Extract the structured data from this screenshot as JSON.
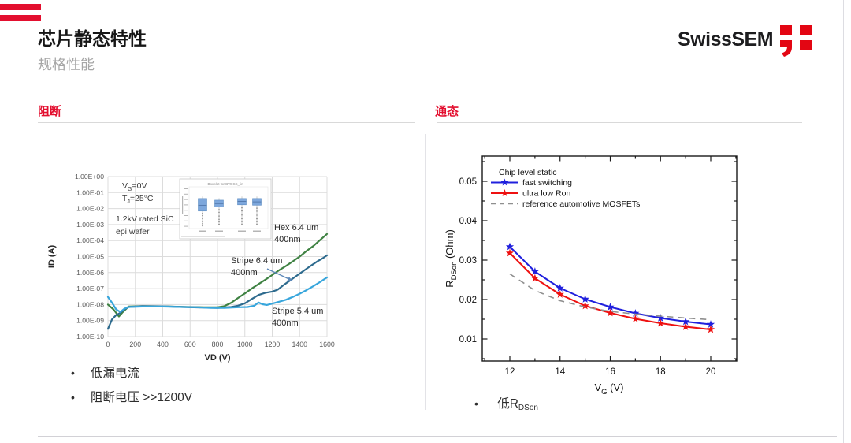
{
  "slide": {
    "title": "芯片静态特性",
    "subtitle": "规格性能",
    "accent_color": "#e30f2f"
  },
  "logo": {
    "text": "SwissSEM",
    "mark_color": "#e30613"
  },
  "left_section": {
    "heading": "阻断",
    "bullets": [
      "低漏电流",
      "阻断电压 >>1200V"
    ]
  },
  "right_section": {
    "heading": "通态",
    "bullet": {
      "base": "低R",
      "sub": "DSon"
    }
  },
  "chart_data": [
    {
      "id": "blocking",
      "type": "line",
      "title": "",
      "xlabel": "VD (V)",
      "ylabel": "ID (A)",
      "xlim": [
        0,
        1600
      ],
      "ylim": [
        1e-10,
        1
      ],
      "grid": true,
      "x_ticks": [
        0,
        200,
        400,
        600,
        800,
        1000,
        1200,
        1400,
        1600
      ],
      "y_tick_labels": [
        "1.00E+00",
        "1.00E-01",
        "1.00E-02",
        "1.00E-03",
        "1.00E-04",
        "1.00E-05",
        "1.00E-06",
        "1.00E-07",
        "1.00E-08",
        "1.00E-09",
        "1.00E-10"
      ],
      "conditions": [
        {
          "base": "V",
          "sub": "G",
          "rest": "=0V"
        },
        {
          "base": "T",
          "sub": "J",
          "rest": "=25°C"
        }
      ],
      "note_lines": [
        "1.2kV rated SiC",
        "epi wafer"
      ],
      "series": [
        {
          "name": "Hex 6.4 um 400nm",
          "label_lines": [
            "Hex 6.4 um",
            "400nm"
          ],
          "color": "#3f8243",
          "points": [
            [
              0,
              1e-08
            ],
            [
              40,
              5e-09
            ],
            [
              80,
              1.8e-09
            ],
            [
              110,
              3.5e-09
            ],
            [
              150,
              7.5e-09
            ],
            [
              250,
              8e-09
            ],
            [
              400,
              7.8e-09
            ],
            [
              550,
              7.2e-09
            ],
            [
              700,
              6.8e-09
            ],
            [
              800,
              6.8e-09
            ],
            [
              850,
              8e-09
            ],
            [
              900,
              1.3e-08
            ],
            [
              950,
              2.6e-08
            ],
            [
              1000,
              5e-08
            ],
            [
              1050,
              1e-07
            ],
            [
              1100,
              1.9e-07
            ],
            [
              1150,
              3.6e-07
            ],
            [
              1200,
              7e-07
            ],
            [
              1250,
              1.4e-06
            ],
            [
              1300,
              2.6e-06
            ],
            [
              1350,
              5e-06
            ],
            [
              1400,
              1e-05
            ],
            [
              1450,
              2.2e-05
            ],
            [
              1500,
              4.5e-05
            ],
            [
              1550,
              0.00011
            ],
            [
              1600,
              0.00026
            ]
          ]
        },
        {
          "name": "Stripe 6.4 um 400nm",
          "label_lines": [
            "Stripe 6.4 um",
            "400nm"
          ],
          "color": "#2e6b8e",
          "points": [
            [
              0,
              3e-10
            ],
            [
              30,
              1.2e-09
            ],
            [
              60,
              2.2e-09
            ],
            [
              90,
              3e-09
            ],
            [
              120,
              5e-09
            ],
            [
              150,
              7e-09
            ],
            [
              250,
              8e-09
            ],
            [
              400,
              7.8e-09
            ],
            [
              550,
              7e-09
            ],
            [
              700,
              6.5e-09
            ],
            [
              800,
              6.2e-09
            ],
            [
              900,
              7e-09
            ],
            [
              950,
              8.5e-09
            ],
            [
              1000,
              1.2e-08
            ],
            [
              1050,
              2.2e-08
            ],
            [
              1100,
              4e-08
            ],
            [
              1150,
              5.5e-08
            ],
            [
              1200,
              6.5e-08
            ],
            [
              1240,
              8.5e-08
            ],
            [
              1280,
              1.6e-07
            ],
            [
              1330,
              3.2e-07
            ],
            [
              1380,
              6.5e-07
            ],
            [
              1430,
              1.3e-06
            ],
            [
              1480,
              2.6e-06
            ],
            [
              1530,
              5e-06
            ],
            [
              1570,
              8e-06
            ],
            [
              1600,
              1.2e-05
            ]
          ]
        },
        {
          "name": "Stripe 5.4 um 400nm",
          "label_lines": [
            "Stripe 5.4 um",
            "400nm"
          ],
          "color": "#38a6dc",
          "points": [
            [
              0,
              3e-08
            ],
            [
              30,
              1.3e-08
            ],
            [
              60,
              5e-09
            ],
            [
              90,
              3.5e-09
            ],
            [
              120,
              5.5e-09
            ],
            [
              150,
              7e-09
            ],
            [
              250,
              7.5e-09
            ],
            [
              400,
              7.5e-09
            ],
            [
              550,
              7e-09
            ],
            [
              650,
              6.8e-09
            ],
            [
              750,
              6.2e-09
            ],
            [
              850,
              6.2e-09
            ],
            [
              950,
              6.8e-09
            ],
            [
              1020,
              7e-09
            ],
            [
              1070,
              8.5e-09
            ],
            [
              1100,
              1.35e-08
            ],
            [
              1130,
              1.05e-08
            ],
            [
              1160,
              9.5e-09
            ],
            [
              1200,
              1.15e-08
            ],
            [
              1250,
              1.5e-08
            ],
            [
              1300,
              2e-08
            ],
            [
              1350,
              3e-08
            ],
            [
              1400,
              4.8e-08
            ],
            [
              1450,
              8e-08
            ],
            [
              1500,
              1.4e-07
            ],
            [
              1550,
              2.6e-07
            ],
            [
              1600,
              5e-07
            ]
          ]
        }
      ],
      "inset": {
        "type": "boxplot",
        "title": "Boxplot für BVDSS_lin",
        "boxes": [
          {
            "x": 0.17,
            "q3": 0.72,
            "q1": 0.42,
            "med": 0.56,
            "wlow": 0.05
          },
          {
            "x": 0.38,
            "q3": 0.68,
            "q1": 0.52,
            "med": 0.6,
            "wlow": 0.08
          },
          {
            "x": 0.67,
            "q3": 0.72,
            "q1": 0.57,
            "med": 0.65,
            "wlow": 0.08
          },
          {
            "x": 0.86,
            "q3": 0.72,
            "q1": 0.56,
            "med": 0.64,
            "wlow": 0.08
          }
        ]
      }
    },
    {
      "id": "on_state",
      "type": "line",
      "legend_title": "Chip level static",
      "legend_position": "top-left",
      "xlabel": {
        "base": "V",
        "sub": "G",
        "rest": " (V)"
      },
      "ylabel": {
        "base": "R",
        "sub": "DSon",
        "rest": " (Ohm)"
      },
      "xlim": [
        11,
        21
      ],
      "ylim": [
        0.0045,
        0.0565
      ],
      "grid": false,
      "x": [
        12,
        13,
        14,
        15,
        16,
        17,
        18,
        19,
        20
      ],
      "x_ticks": [
        12,
        14,
        16,
        18,
        20
      ],
      "y_ticks": [
        0.01,
        0.02,
        0.03,
        0.04,
        0.05
      ],
      "series": [
        {
          "name": "fast switching",
          "color": "#2020dd",
          "marker": "star",
          "values": [
            0.0334,
            0.0271,
            0.0229,
            0.0201,
            0.0181,
            0.0165,
            0.0153,
            0.0144,
            0.0137
          ]
        },
        {
          "name": "ultra low Ron",
          "color": "#ee1111",
          "marker": "star",
          "values": [
            0.0318,
            0.0254,
            0.0213,
            0.0184,
            0.0166,
            0.0151,
            0.014,
            0.0131,
            0.0124
          ]
        },
        {
          "name": "reference automotive MOSFETs",
          "color": "#8f8f8f",
          "dashed": true,
          "values": [
            0.0265,
            0.0223,
            0.0197,
            0.0181,
            0.017,
            0.0163,
            0.0158,
            0.0153,
            0.0149
          ]
        }
      ]
    }
  ]
}
